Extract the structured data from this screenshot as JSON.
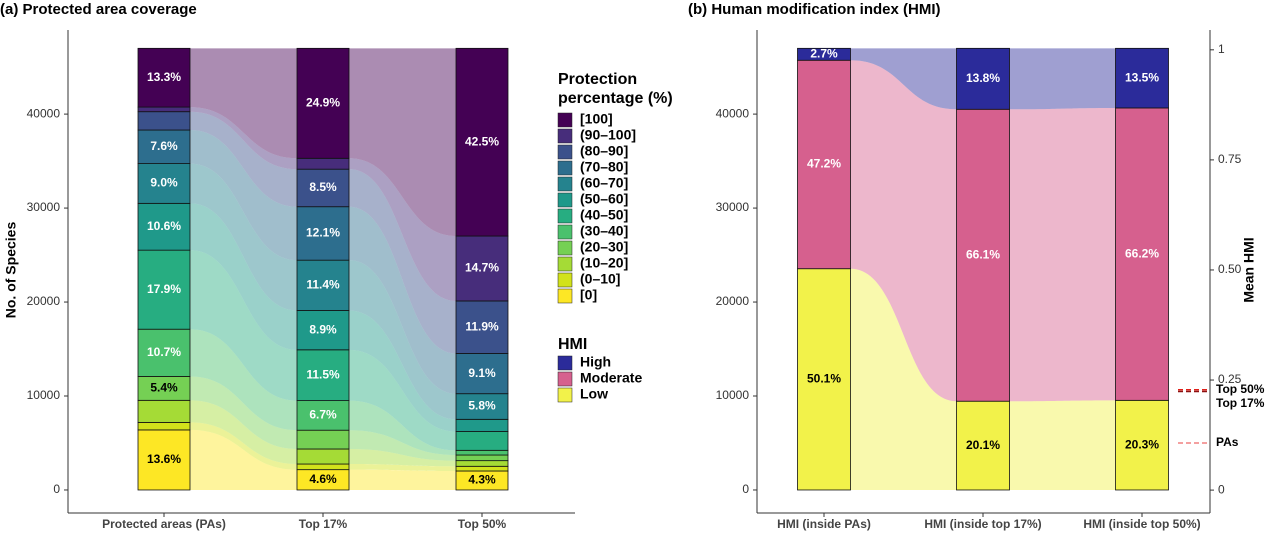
{
  "chart_data": [
    {
      "type": "alluvial",
      "title": "(a) Protected area coverage",
      "y_label": "No. of Species",
      "categories": [
        "Protected areas (PAs)",
        "Top 17%",
        "Top 50%"
      ],
      "ylim": [
        -2450,
        48950
      ],
      "yticks": [
        0,
        10000,
        20000,
        30000,
        40000
      ],
      "legend_title": "Protection percentage (%)",
      "series": [
        {
          "name": "[0]",
          "color": "#fde725",
          "values": [
            6392,
            2162,
            2021
          ],
          "value_labels": [
            "13.6%",
            "4.6%",
            "4.3%"
          ]
        },
        {
          "name": "(0–10]",
          "color": "#d2e21b",
          "values": [
            800,
            600,
            500
          ],
          "value_labels": [
            null,
            null,
            null
          ]
        },
        {
          "name": "(10–20]",
          "color": "#a5db36",
          "values": [
            2350,
            1600,
            600
          ],
          "value_labels": [
            null,
            null,
            null
          ]
        },
        {
          "name": "(20–30]",
          "color": "#75d054",
          "values": [
            2538,
            2000,
            600
          ],
          "value_labels": [
            "5.4%",
            null,
            null
          ]
        },
        {
          "name": "(30–40]",
          "color": "#4ac16d",
          "values": [
            5029,
            3149,
            500
          ],
          "value_labels": [
            "10.7%",
            "6.7%",
            null
          ]
        },
        {
          "name": "(40–50]",
          "color": "#27ad81",
          "values": [
            8413,
            5405,
            2000
          ],
          "value_labels": [
            "17.9%",
            "11.5%",
            null
          ]
        },
        {
          "name": "(50–60]",
          "color": "#1f998a",
          "values": [
            4982,
            4183,
            1299
          ],
          "value_labels": [
            "10.6%",
            "8.9%",
            null
          ]
        },
        {
          "name": "(60–70]",
          "color": "#25838e",
          "values": [
            4230,
            5358,
            2726
          ],
          "value_labels": [
            "9.0%",
            "11.4%",
            "5.8%"
          ]
        },
        {
          "name": "(70–80]",
          "color": "#2d6e8e",
          "values": [
            3572,
            5687,
            4277
          ],
          "value_labels": [
            "7.6%",
            "12.1%",
            "9.1%"
          ]
        },
        {
          "name": "(80–90]",
          "color": "#3b518b",
          "values": [
            1950,
            3995,
            5593
          ],
          "value_labels": [
            null,
            "8.5%",
            "11.9%"
          ]
        },
        {
          "name": "(90–100]",
          "color": "#472d7b",
          "values": [
            493,
            1158,
            6909
          ],
          "value_labels": [
            null,
            null,
            "14.7%"
          ]
        },
        {
          "name": "[100]",
          "color": "#440154",
          "values": [
            6251,
            11703,
            19975
          ],
          "value_labels": [
            "13.3%",
            "24.9%",
            "42.5%"
          ]
        }
      ]
    },
    {
      "type": "alluvial",
      "title": "(b) Human modification index (HMI)",
      "y2_label": "Mean HMI",
      "categories": [
        "HMI (inside PAs)",
        "HMI (inside top 17%)",
        "HMI (inside top 50%)"
      ],
      "ylim": [
        -2450,
        48950
      ],
      "yticks": [
        0,
        10000,
        20000,
        30000,
        40000
      ],
      "y2lim": [
        -0.052,
        1.045
      ],
      "y2ticks": [
        0,
        0.25,
        {
          "value": 0.5,
          "label": "0.50"
        },
        0.75,
        1
      ],
      "legend_title": "HMI",
      "series": [
        {
          "name": "Low",
          "color": "#f2f24a",
          "values": [
            23547,
            9447,
            9541
          ],
          "value_labels": [
            "50.1%",
            "20.1%",
            "20.3%"
          ]
        },
        {
          "name": "Moderate",
          "color": "#d6608e",
          "values": [
            22184,
            31067,
            31114
          ],
          "value_labels": [
            "47.2%",
            "66.1%",
            "66.2%"
          ]
        },
        {
          "name": "High",
          "color": "#2b2b9a",
          "values": [
            1269,
            6486,
            6345
          ],
          "value_labels": [
            "2.7%",
            "13.8%",
            "13.5%"
          ]
        }
      ],
      "mean_hmi_markers": [
        {
          "label": "Top 50%",
          "value": 0.228,
          "color": "#e0201a"
        },
        {
          "label": "Top 17%",
          "value": 0.224,
          "color": "#8b1010"
        },
        {
          "label": "PAs",
          "value": 0.107,
          "color": "#f08080"
        }
      ]
    }
  ]
}
